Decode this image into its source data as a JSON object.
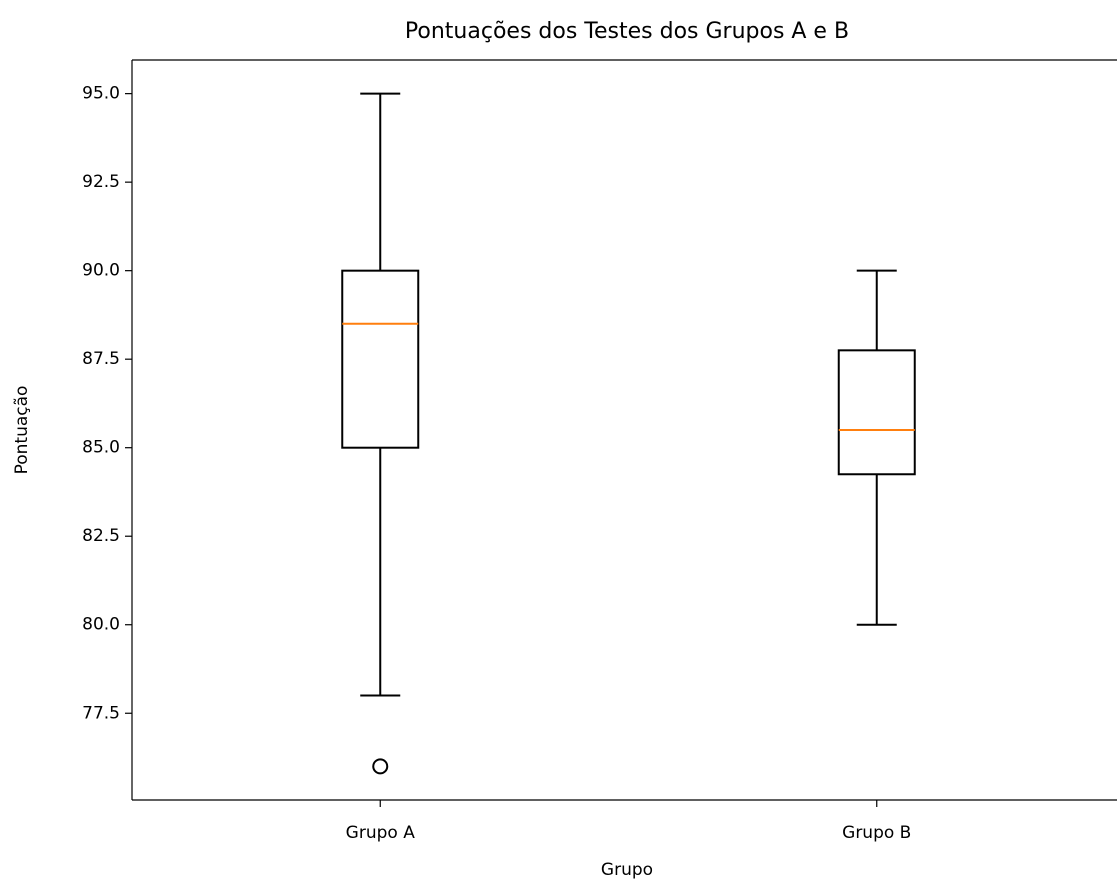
{
  "chart_data": {
    "type": "box",
    "title": "Pontuações dos Testes dos Grupos A e B",
    "xlabel": "Grupo",
    "ylabel": "Pontuação",
    "categories": [
      "Grupo A",
      "Grupo B"
    ],
    "boxes": [
      {
        "whislo": 78,
        "q1": 85,
        "med": 88.5,
        "q3": 90,
        "whishi": 95,
        "fliers": [
          76
        ]
      },
      {
        "whislo": 80,
        "q1": 84.25,
        "med": 85.5,
        "q3": 87.75,
        "whishi": 90,
        "fliers": []
      }
    ],
    "color": "#000000",
    "median_color": "#ff7f0e",
    "ylim": [
      75.05,
      95.95
    ],
    "yticks": [
      77.5,
      {
        "value": 80,
        "label": "80.0"
      },
      82.5,
      {
        "value": 85,
        "label": "85.0"
      },
      87.5,
      {
        "value": 90,
        "label": "90.0"
      },
      92.5,
      {
        "value": 95,
        "label": "95.0"
      }
    ]
  }
}
